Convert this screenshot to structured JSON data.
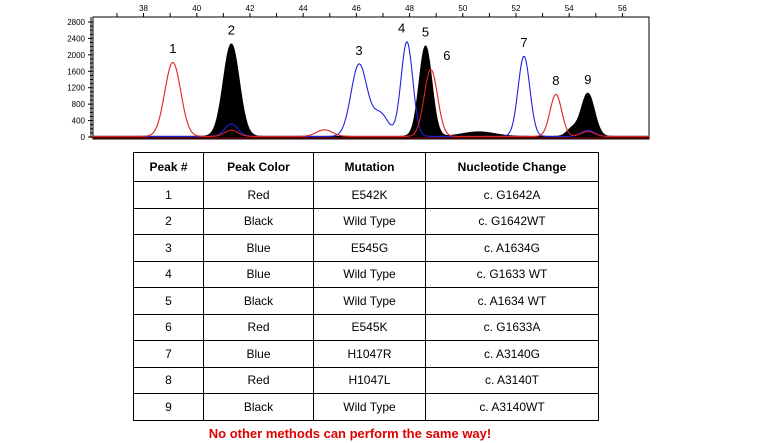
{
  "chart_data": {
    "type": "line",
    "title": "",
    "xlabel": "",
    "ylabel": "",
    "xlim": [
      36.1,
      57.0
    ],
    "ylim": [
      0,
      2900
    ],
    "x_ticks": [
      "38",
      "40",
      "42",
      "44",
      "46",
      "48",
      "50",
      "52",
      "54",
      "56"
    ],
    "x_tick_values": [
      38,
      40,
      42,
      44,
      46,
      48,
      50,
      52,
      54,
      56
    ],
    "y_ticks": [
      "0",
      "400",
      "800",
      "1200",
      "1600",
      "2000",
      "2400",
      "2800"
    ],
    "y_tick_values": [
      0,
      400,
      800,
      1200,
      1600,
      2000,
      2400,
      2800
    ],
    "series": [
      {
        "name": "Black",
        "color": "#000000",
        "filled": true,
        "peaks": [
          {
            "x": 41.3,
            "y": 2250,
            "sigma": 0.3
          },
          {
            "x": 48.6,
            "y": 2200,
            "sigma": 0.24
          },
          {
            "x": 54.7,
            "y": 1050,
            "sigma": 0.25
          },
          {
            "x": 54.1,
            "y": 180,
            "sigma": 0.2
          },
          {
            "x": 50.6,
            "y": 110,
            "sigma": 0.6
          }
        ]
      },
      {
        "name": "Blue",
        "color": "#2020e0",
        "filled": false,
        "peaks": [
          {
            "x": 46.1,
            "y": 1750,
            "sigma": 0.3
          },
          {
            "x": 46.9,
            "y": 550,
            "sigma": 0.3
          },
          {
            "x": 47.9,
            "y": 2300,
            "sigma": 0.22
          },
          {
            "x": 52.3,
            "y": 1950,
            "sigma": 0.22
          },
          {
            "x": 41.3,
            "y": 300,
            "sigma": 0.25
          },
          {
            "x": 54.7,
            "y": 150,
            "sigma": 0.25
          }
        ]
      },
      {
        "name": "Red",
        "color": "#e02020",
        "filled": false,
        "peaks": [
          {
            "x": 39.1,
            "y": 1800,
            "sigma": 0.3
          },
          {
            "x": 44.8,
            "y": 160,
            "sigma": 0.3
          },
          {
            "x": 48.8,
            "y": 1630,
            "sigma": 0.25
          },
          {
            "x": 53.5,
            "y": 1020,
            "sigma": 0.22
          },
          {
            "x": 41.3,
            "y": 150,
            "sigma": 0.25
          },
          {
            "x": 54.7,
            "y": 120,
            "sigma": 0.25
          }
        ]
      }
    ],
    "peak_labels": [
      {
        "label": "1",
        "x": 39.1,
        "y": 1800
      },
      {
        "label": "2",
        "x": 41.3,
        "y": 2250
      },
      {
        "label": "3",
        "x": 46.1,
        "y": 1750
      },
      {
        "label": "4",
        "x": 47.7,
        "y": 2300
      },
      {
        "label": "5",
        "x": 48.6,
        "y": 2200
      },
      {
        "label": "6",
        "x": 49.4,
        "y": 1630
      },
      {
        "label": "7",
        "x": 52.3,
        "y": 1950
      },
      {
        "label": "8",
        "x": 53.5,
        "y": 1020
      },
      {
        "label": "9",
        "x": 54.7,
        "y": 1050
      }
    ]
  },
  "table": {
    "headers": [
      "Peak #",
      "Peak Color",
      "Mutation",
      "Nucleotide Change"
    ],
    "rows": [
      [
        "1",
        "Red",
        "E542K",
        "c. G1642A"
      ],
      [
        "2",
        "Black",
        "Wild Type",
        "c. G1642WT"
      ],
      [
        "3",
        "Blue",
        "E545G",
        "c. A1634G"
      ],
      [
        "4",
        "Blue",
        "Wild Type",
        "c. G1633 WT"
      ],
      [
        "5",
        "Black",
        "Wild Type",
        "c. A1634 WT"
      ],
      [
        "6",
        "Red",
        "E545K",
        "c. G1633A"
      ],
      [
        "7",
        "Blue",
        "H1047R",
        "c. A3140G"
      ],
      [
        "8",
        "Red",
        "H1047L",
        "c. A3140T"
      ],
      [
        "9",
        "Black",
        "Wild Type",
        "c. A3140WT"
      ]
    ]
  },
  "footer": "No other methods can perform the same way!"
}
